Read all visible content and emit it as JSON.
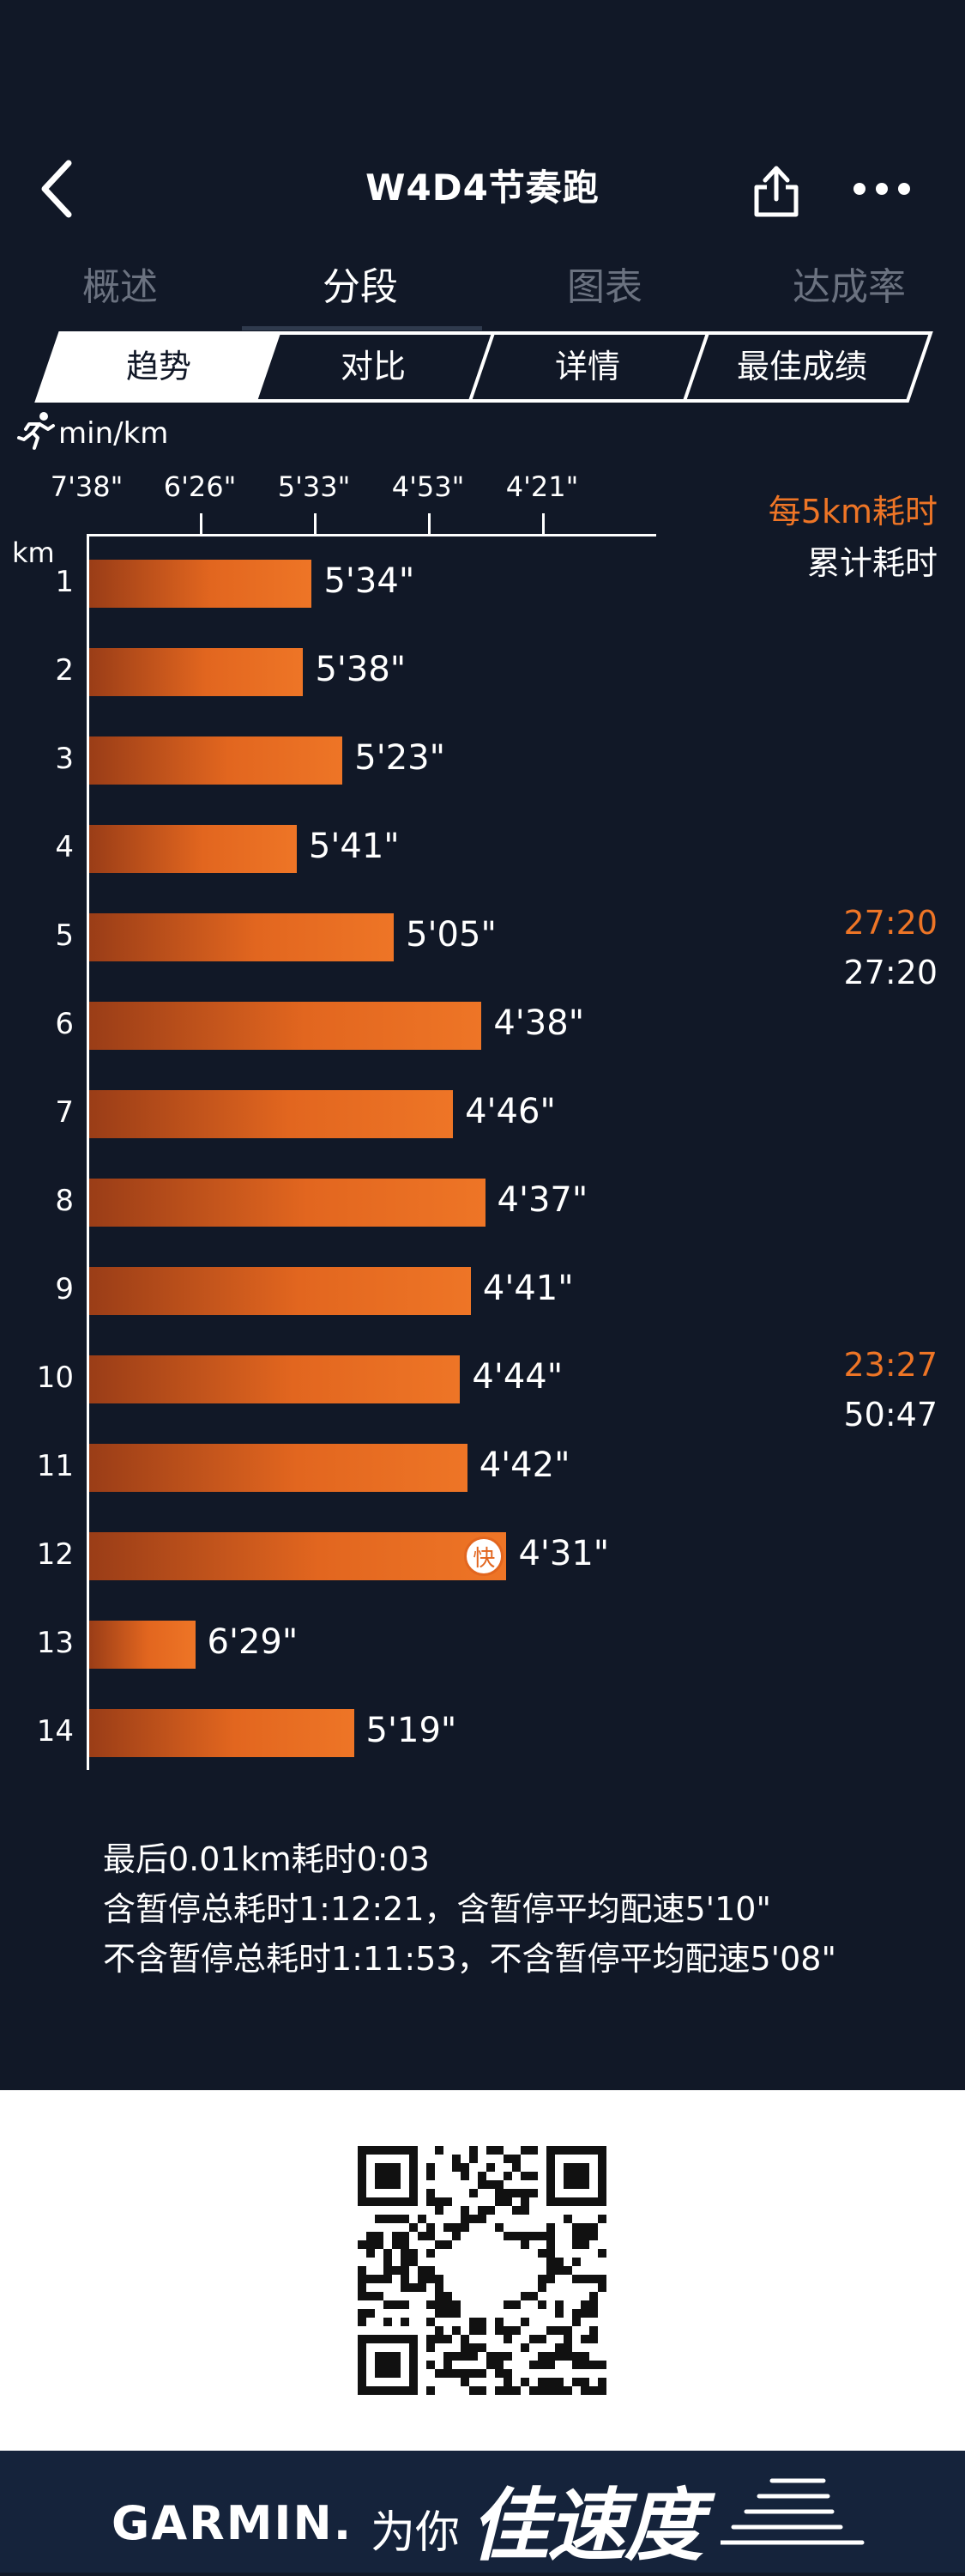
{
  "header": {
    "title": "W4D4节奏跑",
    "icons": {
      "back": "chevron-left-icon",
      "share": "share-icon",
      "more": "more-icon"
    }
  },
  "main_tabs": [
    {
      "label": "概述",
      "active": false
    },
    {
      "label": "分段",
      "active": true
    },
    {
      "label": "图表",
      "active": false
    },
    {
      "label": "达成率",
      "active": false
    }
  ],
  "sub_tabs": [
    {
      "label": "趋势",
      "active": true
    },
    {
      "label": "对比",
      "active": false
    },
    {
      "label": "详情",
      "active": false
    },
    {
      "label": "最佳成绩",
      "active": false
    }
  ],
  "unit": {
    "icon": "runner-icon",
    "label": "min/km"
  },
  "legend": {
    "split": "每5km耗时",
    "cumulative": "累计耗时"
  },
  "colors": {
    "accent": "#ee7526",
    "background": "#111827",
    "fast_badge": "#e2661f"
  },
  "chart_data": {
    "type": "bar",
    "orientation": "horizontal",
    "ylabel": "km",
    "xlabel": "min/km",
    "x_ticks": [
      "7'38\"",
      "6'26\"",
      "5'33\"",
      "4'53\"",
      "4'21\""
    ],
    "x_tick_values_sec_per_km": [
      458,
      386,
      333,
      293,
      261
    ],
    "categories": [
      "1",
      "2",
      "3",
      "4",
      "5",
      "6",
      "7",
      "8",
      "9",
      "10",
      "11",
      "12",
      "13",
      "14"
    ],
    "pace_labels": [
      "5'34\"",
      "5'38\"",
      "5'23\"",
      "5'41\"",
      "5'05\"",
      "4'38\"",
      "4'46\"",
      "4'37\"",
      "4'41\"",
      "4'44\"",
      "4'42\"",
      "4'31\"",
      "6'29\"",
      "5'19\""
    ],
    "values_sec_per_km": [
      334,
      338,
      323,
      341,
      305,
      278,
      286,
      277,
      281,
      284,
      282,
      271,
      389,
      319
    ],
    "fastest_index": 11,
    "fastest_badge": "快",
    "grid": false
  },
  "split_summary": [
    {
      "km": "5",
      "split": "27:20",
      "cumulative": "27:20"
    },
    {
      "km": "10",
      "split": "23:27",
      "cumulative": "50:47"
    }
  ],
  "summary": {
    "line1": "最后0.01km耗时0:03",
    "line2": "含暂停总耗时1:12:21，含暂停平均配速5'10\"",
    "line3": "不含暂停总耗时1:11:53，不含暂停平均配速5'08\""
  },
  "footer": {
    "qr_icon": "qr-code-icon",
    "brand": "GARMIN.",
    "wei": "为你",
    "slogan": "佳速度"
  }
}
